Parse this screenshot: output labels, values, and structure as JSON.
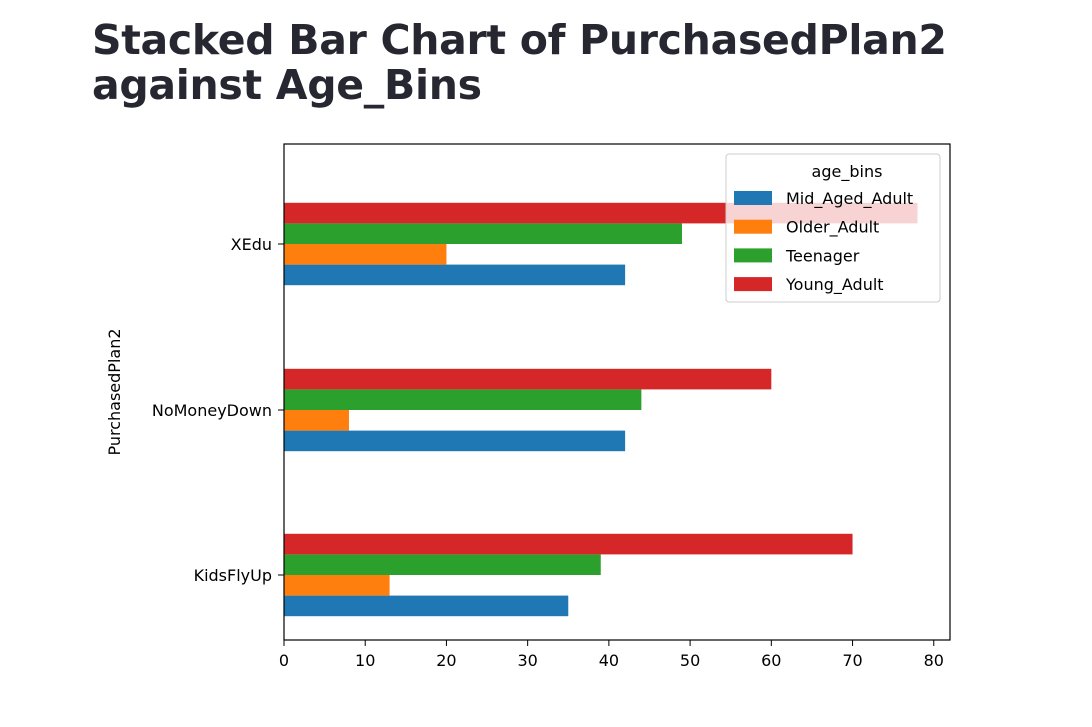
{
  "title": "Stacked Bar Chart of PurchasedPlan2 against Age_Bins",
  "chart_data": {
    "type": "bar",
    "orientation": "horizontal",
    "categories": [
      "KidsFlyUp",
      "NoMoneyDown",
      "XEdu"
    ],
    "series": [
      {
        "name": "Mid_Aged_Adult",
        "color": "#1f77b4",
        "values": [
          35,
          42,
          42
        ]
      },
      {
        "name": "Older_Adult",
        "color": "#ff7f0e",
        "values": [
          13,
          8,
          20
        ]
      },
      {
        "name": "Teenager",
        "color": "#2ca02c",
        "values": [
          39,
          44,
          49
        ]
      },
      {
        "name": "Young_Adult",
        "color": "#d62728",
        "values": [
          70,
          60,
          78
        ]
      }
    ],
    "xlabel": "",
    "ylabel": "PurchasedPlan2",
    "xlim": [
      0,
      82
    ],
    "xticks": [
      0,
      10,
      20,
      30,
      40,
      50,
      60,
      70,
      80
    ],
    "legend_title": "age_bins",
    "legend_position": "upper right",
    "grid": false
  }
}
